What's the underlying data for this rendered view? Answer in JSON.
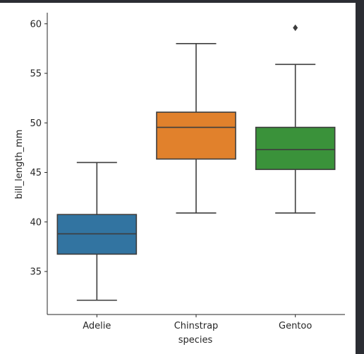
{
  "chart_data": {
    "type": "boxplot",
    "xlabel": "species",
    "ylabel": "bill_length_mm",
    "ylim": [
      30.6,
      61.0
    ],
    "yticks": [
      35,
      40,
      45,
      50,
      55,
      60
    ],
    "categories": [
      "Adelie",
      "Chinstrap",
      "Gentoo"
    ],
    "boxes": [
      {
        "name": "Adelie",
        "color": "#3274a1",
        "whisker_low": 32.1,
        "q1": 36.75,
        "median": 38.8,
        "q3": 40.75,
        "whisker_high": 46.0,
        "outliers": []
      },
      {
        "name": "Chinstrap",
        "color": "#e1812c",
        "whisker_low": 40.9,
        "q1": 46.35,
        "median": 49.55,
        "q3": 51.08,
        "whisker_high": 58.0,
        "outliers": []
      },
      {
        "name": "Gentoo",
        "color": "#3a923a",
        "whisker_low": 40.9,
        "q1": 45.3,
        "median": 47.3,
        "q3": 49.55,
        "whisker_high": 55.9,
        "outliers": [
          59.6
        ]
      }
    ],
    "grid": false,
    "legend": "none"
  }
}
